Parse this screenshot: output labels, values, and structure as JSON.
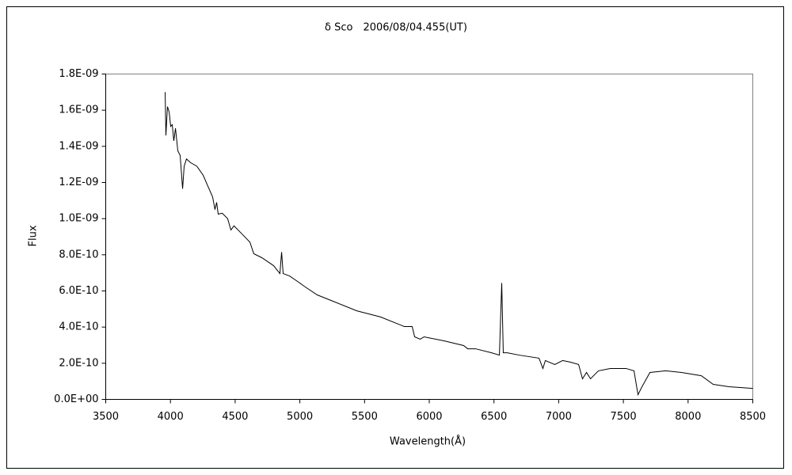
{
  "chart_data": {
    "type": "line",
    "title": "δ Sco　2006/08/04.455(UT)",
    "x_label": "Wavelength(Å)",
    "y_label": "Flux",
    "color": "#000000",
    "grid": false,
    "xlim": [
      3500,
      8500
    ],
    "xticks": [
      3500,
      4000,
      4500,
      5000,
      5500,
      6000,
      6500,
      7000,
      7500,
      8000,
      8500
    ],
    "ylim": [
      0,
      1.8e-09
    ],
    "yticks": [
      {
        "value": 0,
        "label": "0.0E+00"
      },
      {
        "value": 2e-10,
        "label": "2.0E-10"
      },
      {
        "value": 4e-10,
        "label": "4.0E-10"
      },
      {
        "value": 6e-10,
        "label": "6.0E-10"
      },
      {
        "value": 8e-10,
        "label": "8.0E-10"
      },
      {
        "value": 1e-09,
        "label": "1.0E-09"
      },
      {
        "value": 1.2e-09,
        "label": "1.2E-09"
      },
      {
        "value": 1.4e-09,
        "label": "1.4E-09"
      },
      {
        "value": 1.6e-09,
        "label": "1.6E-09"
      },
      {
        "value": 1.8e-09,
        "label": "1.8E-09"
      }
    ],
    "x": [
      3959,
      3965,
      3977,
      3990,
      4002,
      4014,
      4026,
      4039,
      4057,
      4075,
      4094,
      4106,
      4124,
      4155,
      4204,
      4253,
      4289,
      4326,
      4344,
      4357,
      4369,
      4400,
      4442,
      4467,
      4491,
      4553,
      4614,
      4644,
      4706,
      4797,
      4846,
      4859,
      4871,
      4920,
      4981,
      5042,
      5134,
      5256,
      5440,
      5624,
      5807,
      5868,
      5887,
      5930,
      5960,
      6113,
      6266,
      6297,
      6358,
      6481,
      6542,
      6560,
      6572,
      6603,
      6695,
      6848,
      6878,
      6897,
      6970,
      7031,
      7092,
      7154,
      7184,
      7215,
      7246,
      7307,
      7399,
      7521,
      7582,
      7613,
      7644,
      7705,
      7827,
      7950,
      8102,
      8194,
      8316,
      8500
    ],
    "values": [
      1.7e-09,
      1.46e-09,
      1.62e-09,
      1.59e-09,
      1.51e-09,
      1.52e-09,
      1.43e-09,
      1.5e-09,
      1.375e-09,
      1.35e-09,
      1.165e-09,
      1.29e-09,
      1.33e-09,
      1.31e-09,
      1.29e-09,
      1.24e-09,
      1.18e-09,
      1.12e-09,
      1.05e-09,
      1.09e-09,
      1.025e-09,
      1.03e-09,
      1e-09,
      9.37e-10,
      9.6e-10,
      9.15e-10,
      8.7e-10,
      8.06e-10,
      7.84e-10,
      7.4e-10,
      6.96e-10,
      8.15e-10,
      6.96e-10,
      6.83e-10,
      6.53e-10,
      6.22e-10,
      5.78e-10,
      5.43e-10,
      4.9e-10,
      4.56e-10,
      4.03e-10,
      4.03e-10,
      3.46e-10,
      3.33e-10,
      3.46e-10,
      3.24e-10,
      2.98e-10,
      2.8e-10,
      2.8e-10,
      2.58e-10,
      2.45e-10,
      6.44e-10,
      2.58e-10,
      2.58e-10,
      2.45e-10,
      2.28e-10,
      1.71e-10,
      2.15e-10,
      1.93e-10,
      2.15e-10,
      2.06e-10,
      1.93e-10,
      1.14e-10,
      1.49e-10,
      1.14e-10,
      1.58e-10,
      1.71e-10,
      1.71e-10,
      1.58e-10,
      2.6e-11,
      7e-11,
      1.49e-10,
      1.58e-10,
      1.49e-10,
      1.31e-10,
      8.3e-11,
      7e-11,
      6.1e-11
    ]
  }
}
